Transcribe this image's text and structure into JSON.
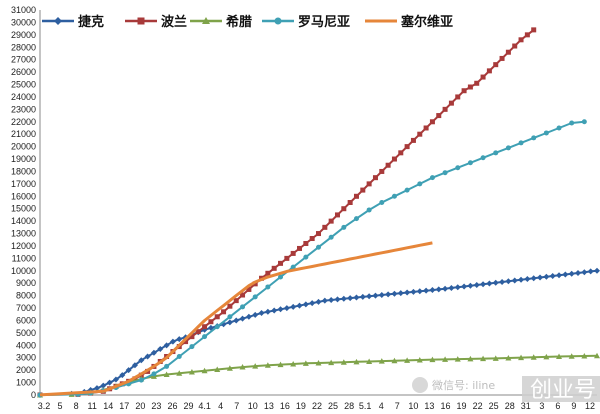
{
  "chart_data": {
    "type": "line",
    "title": "",
    "xlabel": "",
    "ylabel": "",
    "ylim": [
      0,
      31000
    ],
    "yticks": [
      0,
      1000,
      2000,
      3000,
      4000,
      5000,
      6000,
      7000,
      8000,
      9000,
      10000,
      11000,
      12000,
      13000,
      14000,
      15000,
      16000,
      17000,
      18000,
      19000,
      20000,
      21000,
      22000,
      23000,
      24000,
      25000,
      26000,
      27000,
      28000,
      29000,
      30000,
      31000
    ],
    "x_tick_labels": [
      "3.2",
      "5",
      "8",
      "11",
      "14",
      "17",
      "20",
      "23",
      "26",
      "29",
      "4.1",
      "4",
      "7",
      "10",
      "13",
      "16",
      "19",
      "22",
      "25",
      "28",
      "5.1",
      "4",
      "7",
      "10",
      "13",
      "16",
      "19",
      "22",
      "25",
      "28",
      "31",
      "3",
      "6",
      "9",
      "12"
    ],
    "legend_position": "top",
    "grid": false,
    "series": [
      {
        "name": "捷克",
        "color": "#2e5fa0",
        "marker": "diamond",
        "points": [
          [
            0,
            5
          ],
          [
            5,
            100
          ],
          [
            7,
            250
          ],
          [
            8,
            400
          ],
          [
            9,
            550
          ],
          [
            10,
            750
          ],
          [
            11,
            1000
          ],
          [
            12,
            1250
          ],
          [
            13,
            1600
          ],
          [
            14,
            2000
          ],
          [
            15,
            2400
          ],
          [
            16,
            2800
          ],
          [
            17,
            3100
          ],
          [
            18,
            3400
          ],
          [
            19,
            3700
          ],
          [
            20,
            4000
          ],
          [
            21,
            4300
          ],
          [
            22,
            4500
          ],
          [
            23,
            4650
          ],
          [
            24,
            4850
          ],
          [
            25,
            5050
          ],
          [
            26,
            5250
          ],
          [
            27,
            5400
          ],
          [
            28,
            5550
          ],
          [
            29,
            5700
          ],
          [
            30,
            5850
          ],
          [
            31,
            6000
          ],
          [
            32,
            6150
          ],
          [
            33,
            6300
          ],
          [
            34,
            6450
          ],
          [
            35,
            6600
          ],
          [
            36,
            6700
          ],
          [
            37,
            6800
          ],
          [
            38,
            6900
          ],
          [
            39,
            7000
          ],
          [
            40,
            7100
          ],
          [
            41,
            7200
          ],
          [
            42,
            7300
          ],
          [
            43,
            7400
          ],
          [
            44,
            7500
          ],
          [
            45,
            7600
          ],
          [
            46,
            7650
          ],
          [
            47,
            7700
          ],
          [
            48,
            7750
          ],
          [
            49,
            7800
          ],
          [
            50,
            7850
          ],
          [
            51,
            7900
          ],
          [
            52,
            7950
          ],
          [
            53,
            8000
          ],
          [
            54,
            8050
          ],
          [
            55,
            8100
          ],
          [
            56,
            8150
          ],
          [
            57,
            8200
          ],
          [
            58,
            8250
          ],
          [
            59,
            8300
          ],
          [
            60,
            8350
          ],
          [
            61,
            8400
          ],
          [
            62,
            8450
          ],
          [
            63,
            8500
          ],
          [
            64,
            8560
          ],
          [
            65,
            8620
          ],
          [
            66,
            8680
          ],
          [
            67,
            8740
          ],
          [
            68,
            8800
          ],
          [
            69,
            8860
          ],
          [
            70,
            8920
          ],
          [
            71,
            8980
          ],
          [
            72,
            9040
          ],
          [
            73,
            9100
          ],
          [
            74,
            9160
          ],
          [
            75,
            9220
          ],
          [
            76,
            9280
          ],
          [
            77,
            9340
          ],
          [
            78,
            9400
          ],
          [
            79,
            9460
          ],
          [
            80,
            9520
          ],
          [
            81,
            9580
          ],
          [
            82,
            9640
          ],
          [
            83,
            9700
          ],
          [
            84,
            9760
          ],
          [
            85,
            9820
          ],
          [
            86,
            9880
          ],
          [
            87,
            9950
          ],
          [
            88,
            10000
          ]
        ]
      },
      {
        "name": "波兰",
        "color": "#a83a3a",
        "marker": "square",
        "points": [
          [
            0,
            5
          ],
          [
            6,
            50
          ],
          [
            8,
            150
          ],
          [
            10,
            300
          ],
          [
            11,
            500
          ],
          [
            12,
            700
          ],
          [
            13,
            900
          ],
          [
            14,
            1100
          ],
          [
            15,
            1300
          ],
          [
            16,
            1600
          ],
          [
            17,
            1900
          ],
          [
            18,
            2300
          ],
          [
            19,
            2700
          ],
          [
            20,
            3100
          ],
          [
            21,
            3500
          ],
          [
            22,
            3900
          ],
          [
            23,
            4300
          ],
          [
            24,
            4700
          ],
          [
            25,
            5100
          ],
          [
            26,
            5500
          ],
          [
            27,
            5900
          ],
          [
            28,
            6300
          ],
          [
            29,
            6700
          ],
          [
            30,
            7150
          ],
          [
            31,
            7600
          ],
          [
            32,
            8050
          ],
          [
            33,
            8500
          ],
          [
            34,
            8950
          ],
          [
            35,
            9400
          ],
          [
            36,
            9800
          ],
          [
            37,
            10200
          ],
          [
            38,
            10600
          ],
          [
            39,
            11000
          ],
          [
            40,
            11400
          ],
          [
            41,
            11800
          ],
          [
            42,
            12200
          ],
          [
            43,
            12600
          ],
          [
            44,
            13000
          ],
          [
            45,
            13500
          ],
          [
            46,
            14000
          ],
          [
            47,
            14500
          ],
          [
            48,
            15000
          ],
          [
            49,
            15500
          ],
          [
            50,
            16000
          ],
          [
            51,
            16500
          ],
          [
            52,
            17000
          ],
          [
            53,
            17500
          ],
          [
            54,
            18000
          ],
          [
            55,
            18500
          ],
          [
            56,
            19000
          ],
          [
            57,
            19500
          ],
          [
            58,
            20000
          ],
          [
            59,
            20500
          ],
          [
            60,
            21000
          ],
          [
            61,
            21500
          ],
          [
            62,
            22000
          ],
          [
            63,
            22500
          ],
          [
            64,
            23000
          ],
          [
            65,
            23500
          ],
          [
            66,
            24000
          ],
          [
            67,
            24500
          ],
          [
            68,
            24800
          ],
          [
            69,
            25100
          ],
          [
            70,
            25600
          ],
          [
            71,
            26100
          ],
          [
            72,
            26600
          ],
          [
            73,
            27100
          ],
          [
            74,
            27600
          ],
          [
            75,
            28100
          ],
          [
            76,
            28600
          ],
          [
            77,
            29000
          ],
          [
            78,
            29400
          ]
        ]
      },
      {
        "name": "希腊",
        "color": "#7fa34a",
        "marker": "triangle",
        "points": [
          [
            0,
            5
          ],
          [
            5,
            50
          ],
          [
            8,
            200
          ],
          [
            10,
            400
          ],
          [
            12,
            700
          ],
          [
            14,
            1000
          ],
          [
            16,
            1300
          ],
          [
            18,
            1500
          ],
          [
            20,
            1650
          ],
          [
            22,
            1750
          ],
          [
            24,
            1850
          ],
          [
            26,
            1950
          ],
          [
            28,
            2050
          ],
          [
            30,
            2150
          ],
          [
            32,
            2250
          ],
          [
            34,
            2330
          ],
          [
            36,
            2400
          ],
          [
            38,
            2450
          ],
          [
            40,
            2500
          ],
          [
            42,
            2550
          ],
          [
            44,
            2580
          ],
          [
            46,
            2610
          ],
          [
            48,
            2640
          ],
          [
            50,
            2670
          ],
          [
            52,
            2700
          ],
          [
            54,
            2730
          ],
          [
            56,
            2760
          ],
          [
            58,
            2790
          ],
          [
            60,
            2820
          ],
          [
            62,
            2850
          ],
          [
            64,
            2870
          ],
          [
            66,
            2890
          ],
          [
            68,
            2910
          ],
          [
            70,
            2930
          ],
          [
            72,
            2950
          ],
          [
            74,
            2980
          ],
          [
            76,
            3010
          ],
          [
            78,
            3040
          ],
          [
            80,
            3070
          ],
          [
            82,
            3100
          ],
          [
            84,
            3120
          ],
          [
            86,
            3140
          ],
          [
            88,
            3160
          ]
        ]
      },
      {
        "name": "罗马尼亚",
        "color": "#3fa0b4",
        "marker": "circle",
        "points": [
          [
            0,
            5
          ],
          [
            6,
            50
          ],
          [
            8,
            150
          ],
          [
            10,
            350
          ],
          [
            12,
            600
          ],
          [
            14,
            900
          ],
          [
            16,
            1200
          ],
          [
            18,
            1700
          ],
          [
            20,
            2300
          ],
          [
            22,
            3100
          ],
          [
            24,
            3900
          ],
          [
            26,
            4700
          ],
          [
            28,
            5500
          ],
          [
            30,
            6300
          ],
          [
            32,
            7100
          ],
          [
            34,
            7900
          ],
          [
            36,
            8700
          ],
          [
            38,
            9500
          ],
          [
            40,
            10300
          ],
          [
            42,
            11100
          ],
          [
            44,
            11900
          ],
          [
            46,
            12700
          ],
          [
            48,
            13500
          ],
          [
            50,
            14200
          ],
          [
            52,
            14900
          ],
          [
            54,
            15500
          ],
          [
            56,
            16000
          ],
          [
            58,
            16500
          ],
          [
            60,
            17000
          ],
          [
            62,
            17500
          ],
          [
            64,
            17900
          ],
          [
            66,
            18300
          ],
          [
            68,
            18700
          ],
          [
            70,
            19100
          ],
          [
            72,
            19500
          ],
          [
            74,
            19900
          ],
          [
            76,
            20300
          ],
          [
            78,
            20700
          ],
          [
            80,
            21100
          ],
          [
            82,
            21500
          ],
          [
            84,
            21900
          ],
          [
            86,
            22000
          ]
        ]
      },
      {
        "name": "塞尔维亚",
        "color": "#e6863a",
        "marker": "none",
        "points": [
          [
            0,
            5
          ],
          [
            10,
            300
          ],
          [
            12,
            700
          ],
          [
            14,
            1100
          ],
          [
            15,
            1400
          ],
          [
            16,
            1700
          ],
          [
            17,
            2000
          ],
          [
            18,
            2300
          ],
          [
            19,
            2650
          ],
          [
            20,
            3000
          ],
          [
            21,
            3500
          ],
          [
            22,
            4000
          ],
          [
            23,
            4500
          ],
          [
            24,
            5000
          ],
          [
            25,
            5500
          ],
          [
            26,
            6000
          ],
          [
            27,
            6400
          ],
          [
            28,
            6800
          ],
          [
            29,
            7200
          ],
          [
            30,
            7600
          ],
          [
            31,
            8000
          ],
          [
            32,
            8400
          ],
          [
            33,
            8800
          ],
          [
            34,
            9100
          ],
          [
            35,
            9300
          ],
          [
            36,
            9500
          ],
          [
            37,
            9650
          ],
          [
            38,
            9800
          ],
          [
            39,
            9950
          ],
          [
            40,
            10050
          ],
          [
            41,
            10150
          ],
          [
            42,
            10250
          ],
          [
            43,
            10350
          ],
          [
            44,
            10450
          ],
          [
            45,
            10550
          ],
          [
            46,
            10650
          ],
          [
            47,
            10750
          ],
          [
            48,
            10850
          ],
          [
            49,
            10950
          ],
          [
            50,
            11050
          ],
          [
            51,
            11150
          ],
          [
            52,
            11250
          ],
          [
            53,
            11350
          ],
          [
            54,
            11450
          ],
          [
            55,
            11550
          ],
          [
            56,
            11650
          ],
          [
            57,
            11750
          ],
          [
            58,
            11850
          ],
          [
            59,
            11950
          ],
          [
            60,
            12050
          ],
          [
            61,
            12150
          ],
          [
            62,
            12250
          ]
        ]
      }
    ]
  },
  "watermark": {
    "wechat_text": "微信号: iline",
    "brand": "创业号"
  }
}
